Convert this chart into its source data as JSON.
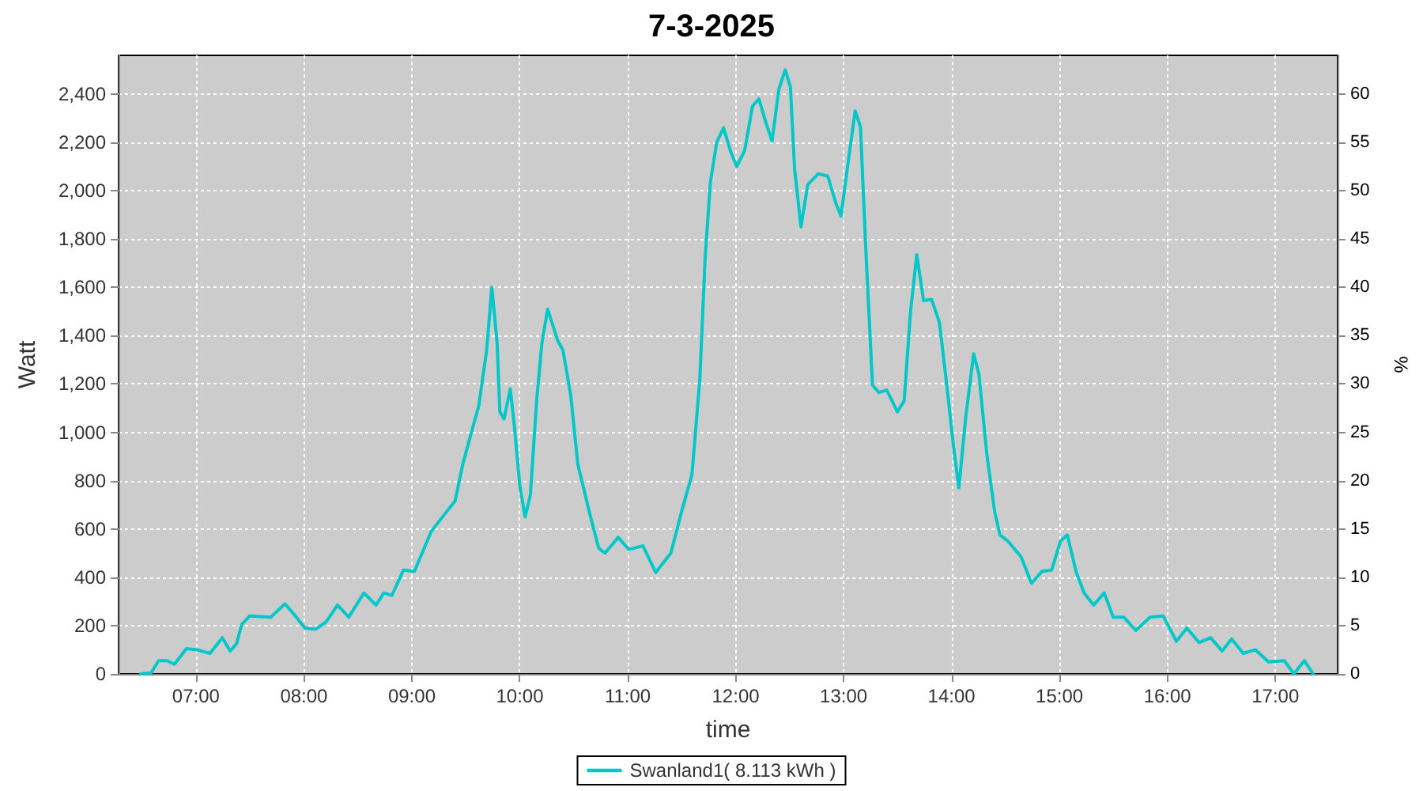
{
  "chart_data": {
    "type": "line",
    "title": "7-3-2025",
    "xlabel": "time",
    "ylabel": "Watt",
    "y2label": "%",
    "x": [
      6.488,
      6.585,
      6.654,
      6.732,
      6.8,
      6.912,
      7.01,
      7.13,
      7.244,
      7.317,
      7.376,
      7.424,
      7.498,
      7.693,
      7.824,
      7.912,
      8.01,
      8.107,
      8.205,
      8.312,
      8.415,
      8.556,
      8.668,
      8.741,
      8.815,
      8.922,
      9.024,
      9.18,
      9.302,
      9.4,
      9.473,
      9.546,
      9.62,
      9.693,
      9.741,
      9.79,
      9.815,
      9.854,
      9.912,
      9.951,
      10.0,
      10.049,
      10.098,
      10.156,
      10.205,
      10.258,
      10.351,
      10.4,
      10.473,
      10.537,
      10.644,
      10.732,
      10.79,
      10.912,
      11.01,
      11.141,
      11.259,
      11.4,
      11.498,
      11.595,
      11.668,
      11.717,
      11.766,
      11.824,
      11.888,
      11.951,
      12.01,
      12.083,
      12.156,
      12.215,
      12.278,
      12.337,
      12.4,
      12.459,
      12.507,
      12.546,
      12.605,
      12.668,
      12.766,
      12.854,
      12.927,
      12.976,
      13.034,
      13.107,
      13.156,
      13.205,
      13.268,
      13.327,
      13.4,
      13.498,
      13.561,
      13.62,
      13.678,
      13.741,
      13.815,
      13.888,
      13.961,
      14.02,
      14.068,
      14.132,
      14.205,
      14.254,
      14.327,
      14.4,
      14.449,
      14.522,
      14.644,
      14.741,
      14.839,
      14.927,
      15.01,
      15.073,
      15.156,
      15.229,
      15.317,
      15.415,
      15.498,
      15.595,
      15.707,
      15.839,
      15.961,
      16.083,
      16.18,
      16.293,
      16.4,
      16.507,
      16.595,
      16.702,
      16.815,
      16.937,
      17.083,
      17.171,
      17.268,
      17.351
    ],
    "series": [
      {
        "name": "Swanland1( 8.113 kWh )",
        "color": "#00c8c8",
        "values": [
          0,
          5,
          55,
          55,
          40,
          105,
          100,
          85,
          150,
          95,
          125,
          205,
          240,
          235,
          290,
          245,
          190,
          185,
          215,
          285,
          235,
          335,
          285,
          335,
          325,
          430,
          425,
          590,
          660,
          715,
          870,
          990,
          1110,
          1340,
          1600,
          1370,
          1085,
          1055,
          1180,
          1020,
          780,
          650,
          740,
          1130,
          1370,
          1510,
          1380,
          1340,
          1150,
          870,
          670,
          520,
          500,
          565,
          515,
          530,
          420,
          500,
          670,
          825,
          1220,
          1720,
          2035,
          2200,
          2260,
          2165,
          2100,
          2165,
          2350,
          2380,
          2285,
          2205,
          2420,
          2500,
          2430,
          2090,
          1850,
          2025,
          2070,
          2060,
          1950,
          1895,
          2090,
          2330,
          2265,
          1765,
          1195,
          1165,
          1175,
          1085,
          1130,
          1500,
          1735,
          1545,
          1550,
          1455,
          1175,
          935,
          770,
          1065,
          1325,
          1240,
          910,
          670,
          575,
          550,
          485,
          375,
          425,
          430,
          550,
          575,
          420,
          335,
          285,
          335,
          235,
          235,
          180,
          235,
          240,
          135,
          190,
          130,
          150,
          95,
          145,
          85,
          100,
          50,
          55,
          0,
          55,
          0
        ]
      }
    ],
    "xlim": [
      6.283,
      17.577
    ],
    "xticks": [
      {
        "value": 7,
        "label": "07:00"
      },
      {
        "value": 8,
        "label": "08:00"
      },
      {
        "value": 9,
        "label": "09:00"
      },
      {
        "value": 10,
        "label": "10:00"
      },
      {
        "value": 11,
        "label": "11:00"
      },
      {
        "value": 12,
        "label": "12:00"
      },
      {
        "value": 13,
        "label": "13:00"
      },
      {
        "value": 14,
        "label": "14:00"
      },
      {
        "value": 15,
        "label": "15:00"
      },
      {
        "value": 16,
        "label": "16:00"
      },
      {
        "value": 17,
        "label": "17:00"
      }
    ],
    "ylim": [
      0,
      2560
    ],
    "yticks": [
      0,
      200,
      400,
      600,
      800,
      {
        "value": 1000,
        "label": "1,000"
      },
      {
        "value": 1200,
        "label": "1,200"
      },
      {
        "value": 1400,
        "label": "1,400"
      },
      {
        "value": 1600,
        "label": "1,600"
      },
      {
        "value": 1800,
        "label": "1,800"
      },
      {
        "value": 2000,
        "label": "2,000"
      },
      {
        "value": 2200,
        "label": "2,200"
      },
      {
        "value": 2400,
        "label": "2,400"
      }
    ],
    "y2lim": [
      0,
      64
    ],
    "y2ticks": [
      0,
      5,
      10,
      15,
      20,
      25,
      30,
      35,
      40,
      45,
      50,
      55,
      60
    ],
    "grid": true,
    "legend": "bottom",
    "marker": "none",
    "line_style": "solid"
  }
}
